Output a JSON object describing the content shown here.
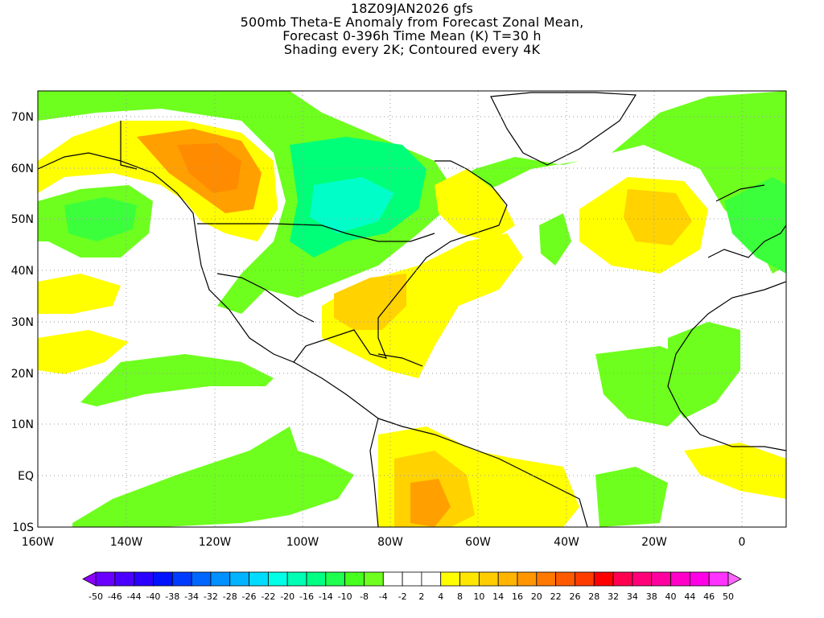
{
  "title": {
    "line1": "18Z09JAN2026 gfs",
    "line2": "500mb Theta-E Anomaly from Forecast Zonal Mean,",
    "line3": "Forecast 0-396h Time Mean (K) T=30 h",
    "line4": "Shading every 2K; Contoured every 4K"
  },
  "axes": {
    "lon_labels": [
      "160W",
      "140W",
      "120W",
      "100W",
      "80W",
      "60W",
      "40W",
      "20W",
      "0"
    ],
    "lat_labels": [
      "70N",
      "60N",
      "50N",
      "40N",
      "30N",
      "20N",
      "10N",
      "EQ",
      "10S"
    ],
    "lon_range": [
      -160,
      10
    ],
    "lat_range": [
      -10,
      75
    ]
  },
  "colorbar": {
    "labels": [
      "-50",
      "-46",
      "-44",
      "-40",
      "-38",
      "-34",
      "-32",
      "-28",
      "-26",
      "-22",
      "-20",
      "-16",
      "-14",
      "-10",
      "-8",
      "-4",
      "-2",
      "2",
      "4",
      "8",
      "10",
      "14",
      "16",
      "20",
      "22",
      "26",
      "28",
      "32",
      "34",
      "38",
      "40",
      "44",
      "46",
      "50"
    ],
    "colors": [
      "#8c00ff",
      "#6a00ff",
      "#4b00ff",
      "#2a00ff",
      "#0012ff",
      "#003cff",
      "#0066ff",
      "#0090ff",
      "#00b4ff",
      "#00dcff",
      "#00ffe6",
      "#00ffb4",
      "#00ff82",
      "#1eff50",
      "#46ff1e",
      "#6eff1e",
      "#ffffff",
      "#ffffff",
      "#ffffff",
      "#ffff00",
      "#ffe600",
      "#ffcc00",
      "#ffb400",
      "#ff9600",
      "#ff7800",
      "#ff5a00",
      "#ff3c00",
      "#ff0000",
      "#ff0050",
      "#ff0078",
      "#ff00a0",
      "#ff00c8",
      "#ff00e6",
      "#ff32ff",
      "#ff64ff"
    ]
  },
  "field_colors": {
    "yellow": "#ffff00",
    "gold": "#ffd200",
    "orange": "#ffa000",
    "dark_orange": "#ff8c00",
    "green": "#6eff1e",
    "mid_green": "#3cff3c",
    "teal_green": "#00ff78",
    "cyan": "#00ffc8"
  }
}
